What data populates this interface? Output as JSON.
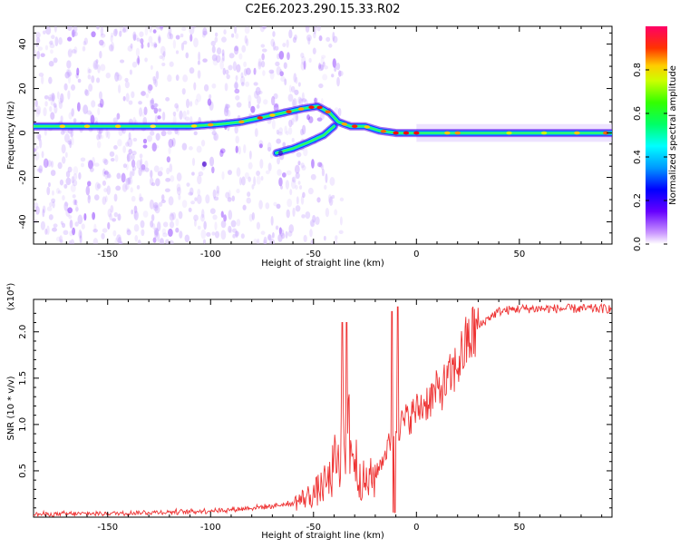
{
  "title": "C2E6.2023.290.15.33.R02",
  "chart_data": [
    {
      "type": "heatmap",
      "xlabel": "Height of straight line (km)",
      "ylabel": "Frequency (Hz)",
      "xlim": [
        -186,
        95
      ],
      "ylim": [
        -50,
        48
      ],
      "x_ticks": [
        -150,
        -100,
        -50,
        0,
        50
      ],
      "y_ticks": [
        -40,
        -20,
        0,
        20,
        40
      ],
      "colorbar": {
        "label": "Normalized spectral amplitude",
        "range": [
          0,
          1
        ],
        "ticks": [
          "0.0",
          "0.2",
          "0.4",
          "0.6",
          "0.8"
        ]
      },
      "main_ridge": [
        {
          "x": -186,
          "y": 3
        },
        {
          "x": -170,
          "y": 3
        },
        {
          "x": -150,
          "y": 3
        },
        {
          "x": -130,
          "y": 3
        },
        {
          "x": -110,
          "y": 3
        },
        {
          "x": -95,
          "y": 4
        },
        {
          "x": -85,
          "y": 5
        },
        {
          "x": -75,
          "y": 7
        },
        {
          "x": -65,
          "y": 9
        },
        {
          "x": -55,
          "y": 11
        },
        {
          "x": -48,
          "y": 12
        },
        {
          "x": -42,
          "y": 9
        },
        {
          "x": -38,
          "y": 5
        },
        {
          "x": -32,
          "y": 3
        },
        {
          "x": -25,
          "y": 3
        },
        {
          "x": -18,
          "y": 1
        },
        {
          "x": -10,
          "y": 0
        },
        {
          "x": 0,
          "y": 0
        },
        {
          "x": 10,
          "y": 0
        },
        {
          "x": 30,
          "y": 0
        },
        {
          "x": 50,
          "y": 0
        },
        {
          "x": 70,
          "y": 0
        },
        {
          "x": 95,
          "y": 0
        }
      ],
      "secondary_ridge": [
        {
          "x": -68,
          "y": -9
        },
        {
          "x": -60,
          "y": -7
        },
        {
          "x": -52,
          "y": -4
        },
        {
          "x": -45,
          "y": -1
        },
        {
          "x": -40,
          "y": 3
        }
      ]
    },
    {
      "type": "line",
      "xlabel": "Height of straight line (km)",
      "ylabel": "SNR (10 * v/v)",
      "y_multiplier": "(x10⁴)",
      "xlim": [
        -186,
        95
      ],
      "ylim": [
        0,
        2.35
      ],
      "x_ticks": [
        -150,
        -100,
        -50,
        0,
        50
      ],
      "y_ticks": [
        "0.5",
        "1.0",
        "1.5",
        "2.0"
      ],
      "series": [
        {
          "color": "#ee3333",
          "envelope": [
            {
              "x": -186,
              "y": 0.03
            },
            {
              "x": -150,
              "y": 0.04
            },
            {
              "x": -110,
              "y": 0.06
            },
            {
              "x": -90,
              "y": 0.08
            },
            {
              "x": -70,
              "y": 0.12
            },
            {
              "x": -60,
              "y": 0.15
            },
            {
              "x": -50,
              "y": 0.25
            },
            {
              "x": -42,
              "y": 0.4
            },
            {
              "x": -38,
              "y": 0.7
            },
            {
              "x": -34,
              "y": 1.0
            },
            {
              "x": -30,
              "y": 0.6
            },
            {
              "x": -25,
              "y": 0.35
            },
            {
              "x": -20,
              "y": 0.45
            },
            {
              "x": -15,
              "y": 0.7
            },
            {
              "x": -10,
              "y": 0.95
            },
            {
              "x": -5,
              "y": 1.05
            },
            {
              "x": 0,
              "y": 1.15
            },
            {
              "x": 5,
              "y": 1.25
            },
            {
              "x": 10,
              "y": 1.35
            },
            {
              "x": 15,
              "y": 1.45
            },
            {
              "x": 20,
              "y": 1.65
            },
            {
              "x": 25,
              "y": 1.9
            },
            {
              "x": 30,
              "y": 2.05
            },
            {
              "x": 35,
              "y": 2.15
            },
            {
              "x": 40,
              "y": 2.22
            },
            {
              "x": 50,
              "y": 2.25
            },
            {
              "x": 70,
              "y": 2.25
            },
            {
              "x": 95,
              "y": 2.25
            }
          ],
          "spikes": [
            {
              "x": -36,
              "y": 2.1
            },
            {
              "x": -34,
              "y": 2.1
            },
            {
              "x": -12,
              "y": 2.22
            },
            {
              "x": -9,
              "y": 2.27
            }
          ]
        }
      ]
    }
  ]
}
